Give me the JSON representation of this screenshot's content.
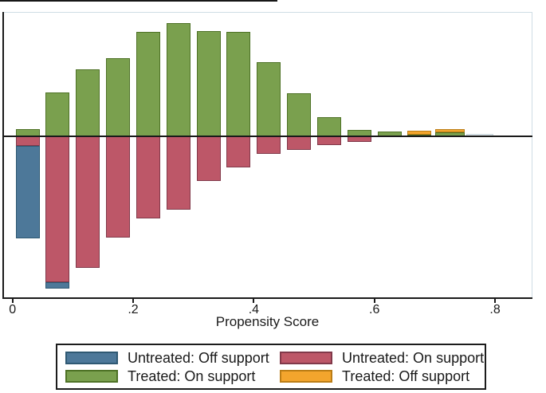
{
  "chart_data": {
    "type": "bar",
    "subtype": "diverging-stacked-histogram",
    "title": "",
    "xlabel": "Propensity Score",
    "ylabel": "",
    "units_note": "y-axis is unlabeled in the figure; segment values are relative heights (rendered px above/below the zero line)",
    "xlim": [
      -0.016,
      0.862
    ],
    "grid": false,
    "legend_position": "bottom",
    "x_ticks": [
      {
        "value": 0.0,
        "label": "0"
      },
      {
        "value": 0.2,
        "label": ".2"
      },
      {
        "value": 0.4,
        "label": ".4"
      },
      {
        "value": 0.6,
        "label": ".6"
      },
      {
        "value": 0.8,
        "label": ".8"
      }
    ],
    "series_meta": [
      {
        "key": "untreated_off",
        "label": "Untreated: Off support",
        "color": "#4d7899",
        "border": "#2f5973",
        "direction": "below"
      },
      {
        "key": "untreated_on",
        "label": "Untreated: On support",
        "color": "#bd5768",
        "border": "#81394a",
        "direction": "below"
      },
      {
        "key": "treated_on",
        "label": "Treated: On support",
        "color": "#7aa04e",
        "border": "#4e7226",
        "direction": "above"
      },
      {
        "key": "treated_off",
        "label": "Treated: Off support",
        "color": "#f3a52d",
        "border": "#bb7d16",
        "direction": "above"
      }
    ],
    "bin_width": 0.05,
    "bins": [
      {
        "center": 0.025,
        "treated_on": 9,
        "treated_off": 0,
        "untreated_on": 12,
        "untreated_off": 116
      },
      {
        "center": 0.075,
        "treated_on": 55,
        "treated_off": 0,
        "untreated_on": 183,
        "untreated_off": 8
      },
      {
        "center": 0.125,
        "treated_on": 84,
        "treated_off": 0,
        "untreated_on": 165,
        "untreated_off": 0
      },
      {
        "center": 0.175,
        "treated_on": 98,
        "treated_off": 0,
        "untreated_on": 127,
        "untreated_off": 0
      },
      {
        "center": 0.225,
        "treated_on": 131,
        "treated_off": 0,
        "untreated_on": 103,
        "untreated_off": 0
      },
      {
        "center": 0.275,
        "treated_on": 142,
        "treated_off": 0,
        "untreated_on": 92,
        "untreated_off": 0
      },
      {
        "center": 0.325,
        "treated_on": 132,
        "treated_off": 0,
        "untreated_on": 56,
        "untreated_off": 0
      },
      {
        "center": 0.375,
        "treated_on": 131,
        "treated_off": 0,
        "untreated_on": 39,
        "untreated_off": 0
      },
      {
        "center": 0.425,
        "treated_on": 93,
        "treated_off": 0,
        "untreated_on": 22,
        "untreated_off": 0
      },
      {
        "center": 0.475,
        "treated_on": 54,
        "treated_off": 0,
        "untreated_on": 17,
        "untreated_off": 0
      },
      {
        "center": 0.525,
        "treated_on": 24,
        "treated_off": 0,
        "untreated_on": 11,
        "untreated_off": 0
      },
      {
        "center": 0.575,
        "treated_on": 8,
        "treated_off": 0,
        "untreated_on": 7,
        "untreated_off": 0
      },
      {
        "center": 0.625,
        "treated_on": 6,
        "treated_off": 0,
        "untreated_on": 0,
        "untreated_off": 0
      },
      {
        "center": 0.675,
        "treated_on": 2,
        "treated_off": 5,
        "untreated_on": 0,
        "untreated_off": 0
      },
      {
        "center": 0.725,
        "treated_on": 5,
        "treated_off": 4,
        "untreated_on": 0,
        "untreated_off": 0,
        "width_units": 0.049
      },
      {
        "center": 0.775,
        "treated_on": 2,
        "treated_off": 0,
        "untreated_on": 0,
        "untreated_off": 0,
        "width_units": 0.045,
        "faint": true
      }
    ]
  },
  "legend": {
    "order": [
      "untreated_off",
      "untreated_on",
      "treated_on",
      "treated_off"
    ]
  },
  "colors": {
    "axis": "#1a1a1a",
    "frame_light": "#cfdde4",
    "text": "#1a1a1a",
    "faint_bar_fill": "#e4ebee",
    "faint_bar_border": "#c8d6dc",
    "background": "#ffffff"
  }
}
